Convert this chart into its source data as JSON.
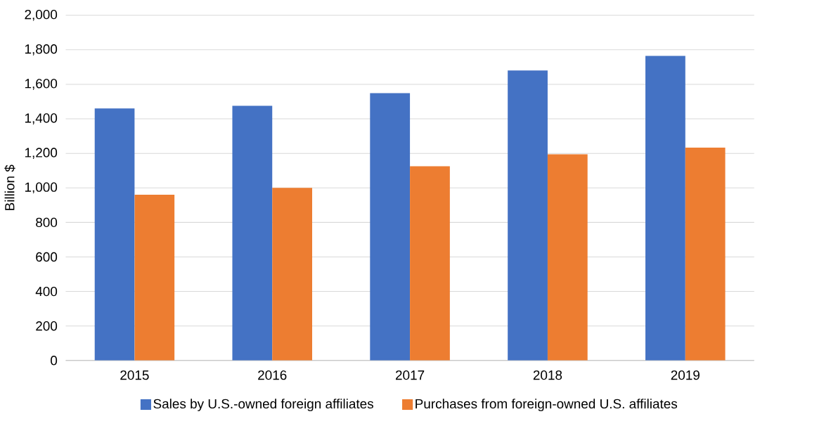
{
  "chart_data": {
    "type": "bar",
    "ylabel": "Billion $",
    "categories": [
      "2015",
      "2016",
      "2017",
      "2018",
      "2019"
    ],
    "series": [
      {
        "name": "Sales by U.S.-owned foreign affiliates",
        "color": "#4472c4",
        "values": [
          1460,
          1476,
          1549,
          1680,
          1765
        ]
      },
      {
        "name": "Purchases from foreign-owned U.S. affiliates",
        "color": "#ed7d31",
        "values": [
          960,
          1000,
          1125,
          1195,
          1233
        ]
      }
    ],
    "ylim": [
      0,
      2000
    ],
    "yticks": [
      0,
      200,
      400,
      600,
      800,
      {
        "value": 1000,
        "label": "1,000"
      },
      {
        "value": 1200,
        "label": "1,200"
      },
      {
        "value": 1400,
        "label": "1,400"
      },
      {
        "value": 1600,
        "label": "1,600"
      },
      {
        "value": 1800,
        "label": "1,800"
      },
      {
        "value": 2000,
        "label": "2,000"
      }
    ],
    "grid": "y",
    "legend": "bottom"
  }
}
